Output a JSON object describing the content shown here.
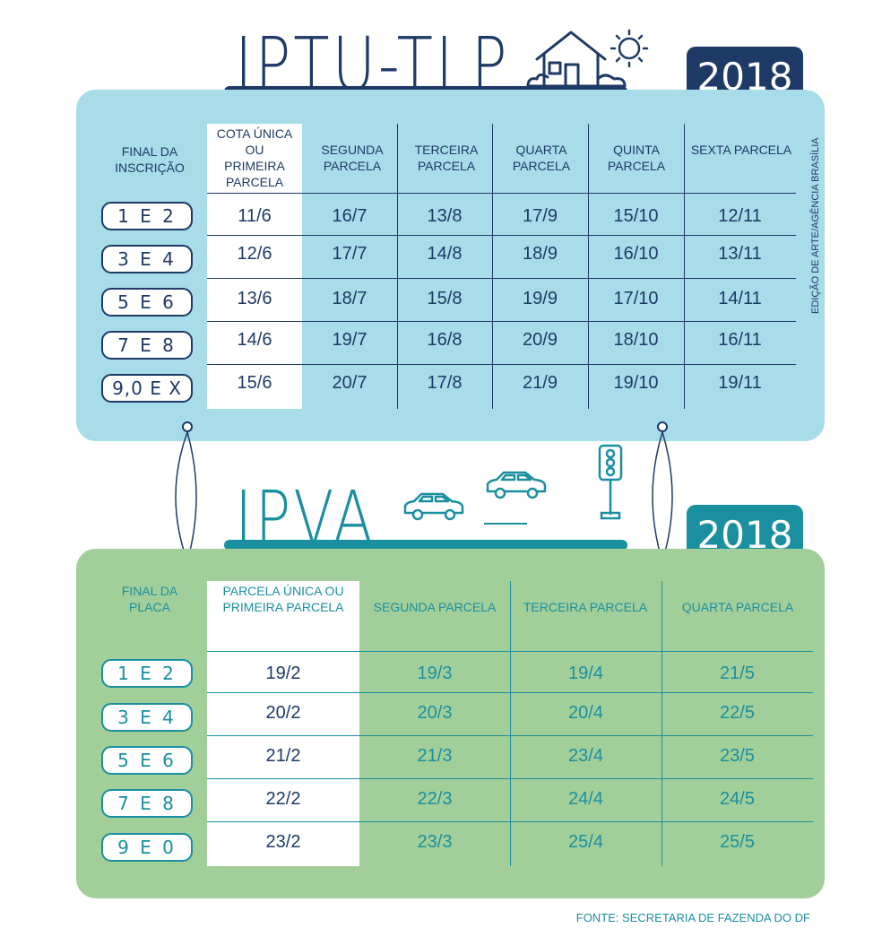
{
  "colors": {
    "iptu_navy": "#1e3a66",
    "iptu_panel": "#a8dce9",
    "ipva_teal": "#1a8fa0",
    "ipva_panel": "#a2cf99"
  },
  "iptu": {
    "title": "IPTU-TLP",
    "year": "2018",
    "headers": [
      "FINAL DA INSCRIÇÃO",
      "COTA ÚNICA OU PRIMEIRA PARCELA",
      "SEGUNDA PARCELA",
      "TERCEIRA PARCELA",
      "QUARTA PARCELA",
      "QUINTA PARCELA",
      "SEXTA PARCELA"
    ],
    "rows": [
      {
        "key": "1 E 2",
        "values": [
          "11/6",
          "16/7",
          "13/8",
          "17/9",
          "15/10",
          "12/11"
        ]
      },
      {
        "key": "3 E 4",
        "values": [
          "12/6",
          "17/7",
          "14/8",
          "18/9",
          "16/10",
          "13/11"
        ]
      },
      {
        "key": "5 E 6",
        "values": [
          "13/6",
          "18/7",
          "15/8",
          "19/9",
          "17/10",
          "14/11"
        ]
      },
      {
        "key": "7 E 8",
        "values": [
          "14/6",
          "19/7",
          "16/8",
          "20/9",
          "18/10",
          "16/11"
        ]
      },
      {
        "key": "9,0 E X",
        "values": [
          "15/6",
          "20/7",
          "17/8",
          "21/9",
          "19/10",
          "19/11"
        ]
      }
    ],
    "credit": "EDIÇÃO DE ARTE/AGÊNCIA BRASÍLIA"
  },
  "ipva": {
    "title": "IPVA",
    "year": "2018",
    "headers": [
      "FINAL DA PLACA",
      "PARCELA ÚNICA OU PRIMEIRA PARCELA",
      "SEGUNDA PARCELA",
      "TERCEIRA PARCELA",
      "QUARTA PARCELA"
    ],
    "rows": [
      {
        "key": "1 E 2",
        "values": [
          "19/2",
          "19/3",
          "19/4",
          "21/5"
        ]
      },
      {
        "key": "3 E 4",
        "values": [
          "20/2",
          "20/3",
          "20/4",
          "22/5"
        ]
      },
      {
        "key": "5 E 6",
        "values": [
          "21/2",
          "21/3",
          "23/4",
          "23/5"
        ]
      },
      {
        "key": "7 E 8",
        "values": [
          "22/2",
          "22/3",
          "24/4",
          "24/5"
        ]
      },
      {
        "key": "9 E 0",
        "values": [
          "23/2",
          "23/3",
          "25/4",
          "25/5"
        ]
      }
    ]
  },
  "source": "FONTE: SECRETARIA DE FAZENDA DO DF",
  "icons": [
    "house-icon",
    "sun-icon",
    "car-icon",
    "traffic-light-icon"
  ]
}
